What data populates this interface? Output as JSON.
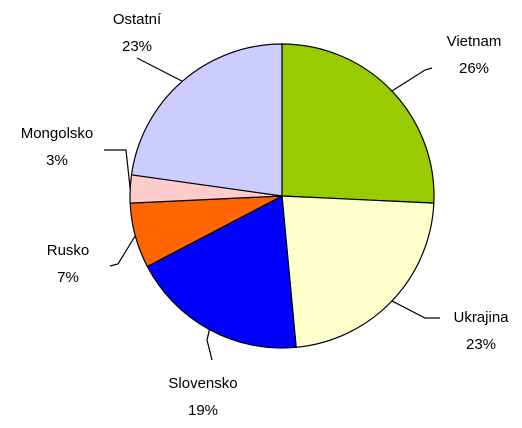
{
  "chart_data": {
    "type": "pie",
    "categories": [
      "Vietnam",
      "Ukrajina",
      "Slovensko",
      "Rusko",
      "Mongolsko",
      "Ostatní"
    ],
    "values": [
      26,
      23,
      19,
      7,
      3,
      23
    ],
    "value_labels": [
      "26%",
      "23%",
      "19%",
      "7%",
      "3%",
      "23%"
    ],
    "colors": [
      "#99cc00",
      "#ffffcc",
      "#0000ff",
      "#ff6600",
      "#ffcccc",
      "#ccccff"
    ]
  }
}
